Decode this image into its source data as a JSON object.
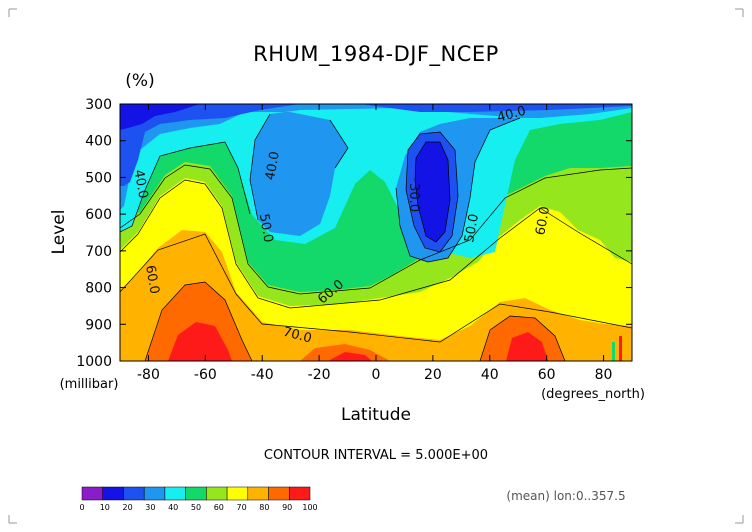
{
  "chart_data": {
    "type": "contour",
    "title": "RHUM_1984-DJF_NCEP",
    "units": "(%)",
    "xlabel": "Latitude",
    "ylabel": "Level",
    "x_unit": "(degrees_north)",
    "y_unit": "(millibar)",
    "x_range": [
      -90,
      90
    ],
    "y_range": [
      1000,
      300
    ],
    "x_ticks": [
      "-80",
      "-60",
      "-40",
      "-20",
      "0",
      "20",
      "40",
      "60",
      "80"
    ],
    "y_ticks": [
      "300",
      "400",
      "500",
      "600",
      "700",
      "800",
      "900",
      "1000"
    ],
    "contour_interval_text": "CONTOUR INTERVAL = 5.000E+00",
    "mean_text": "(mean) lon:0..357.5",
    "contour_labels": [
      {
        "text": "40.0",
        "lat": 48,
        "lev": 300
      },
      {
        "text": "40.0",
        "lat": -84,
        "lev": 520
      },
      {
        "text": "40.0",
        "lat": -35,
        "lev": 470
      },
      {
        "text": "30.0",
        "lat": 12,
        "lev": 555
      },
      {
        "text": "50.0",
        "lat": -40,
        "lev": 640
      },
      {
        "text": "50.0",
        "lat": 35,
        "lev": 640
      },
      {
        "text": "60.0",
        "lat": 60,
        "lev": 620
      },
      {
        "text": "60.0",
        "lat": -80,
        "lev": 780
      },
      {
        "text": "60.0",
        "lat": -15,
        "lev": 820
      },
      {
        "text": "70.0",
        "lat": -28,
        "lev": 940
      }
    ],
    "colorbar": {
      "ticks": [
        "0",
        "10",
        "20",
        "30",
        "40",
        "50",
        "60",
        "70",
        "80",
        "90",
        "100"
      ],
      "colors": [
        "#8a1cc9",
        "#1313e6",
        "#1e52f0",
        "#1f96f0",
        "#16eef0",
        "#12d96a",
        "#95e61d",
        "#ffff00",
        "#ffb200",
        "#ff6a00",
        "#ff1a1a"
      ]
    },
    "grid": false
  }
}
